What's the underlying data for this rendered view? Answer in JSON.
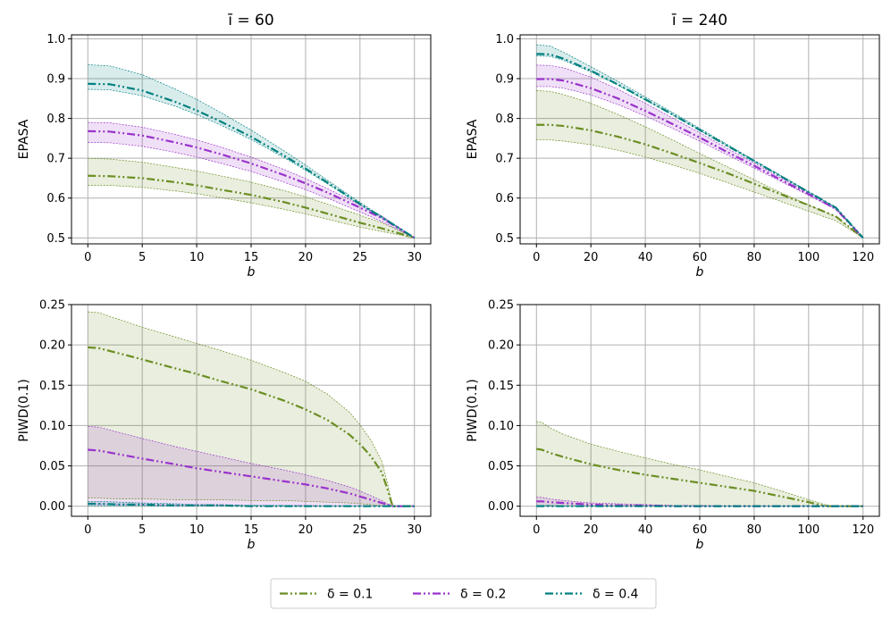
{
  "colors": {
    "d01": "#6b8e23",
    "d02": "#9932cc",
    "d04": "#008080"
  },
  "legend": [
    {
      "label": "δ = 0.1",
      "color": "#6b8e23"
    },
    {
      "label": "δ = 0.2",
      "color": "#9932cc"
    },
    {
      "label": "δ = 0.4",
      "color": "#008080"
    }
  ],
  "chart_data": [
    {
      "type": "line",
      "title": "ī = 60",
      "xlabel": "b",
      "ylabel": "EPASA",
      "xlim": [
        -1.5,
        31.5
      ],
      "ylim": [
        0.485,
        1.01
      ],
      "xticks": [
        0,
        5,
        10,
        15,
        20,
        25,
        30
      ],
      "yticks": [
        0.5,
        0.6,
        0.7,
        0.8,
        0.9,
        1.0
      ],
      "ytick_labels": [
        "0.5",
        "0.6",
        "0.7",
        "0.8",
        "0.9",
        "1.0"
      ],
      "x": [
        0,
        2,
        5,
        8,
        10,
        12,
        15,
        18,
        20,
        22,
        25,
        27,
        30
      ],
      "series": [
        {
          "name": "δ = 0.1",
          "color": "#6b8e23",
          "mean": [
            0.656,
            0.655,
            0.65,
            0.64,
            0.632,
            0.622,
            0.608,
            0.59,
            0.576,
            0.561,
            0.538,
            0.524,
            0.5
          ],
          "lower": [
            0.632,
            0.632,
            0.627,
            0.618,
            0.611,
            0.602,
            0.588,
            0.572,
            0.56,
            0.547,
            0.527,
            0.516,
            0.5
          ],
          "upper": [
            0.7,
            0.698,
            0.69,
            0.677,
            0.668,
            0.657,
            0.64,
            0.619,
            0.603,
            0.585,
            0.557,
            0.538,
            0.5
          ]
        },
        {
          "name": "δ = 0.2",
          "color": "#9932cc",
          "mean": [
            0.768,
            0.767,
            0.757,
            0.74,
            0.727,
            0.712,
            0.687,
            0.658,
            0.637,
            0.614,
            0.576,
            0.55,
            0.5
          ],
          "lower": [
            0.74,
            0.739,
            0.73,
            0.715,
            0.703,
            0.689,
            0.667,
            0.64,
            0.621,
            0.6,
            0.565,
            0.541,
            0.5
          ],
          "upper": [
            0.79,
            0.789,
            0.778,
            0.76,
            0.746,
            0.73,
            0.703,
            0.672,
            0.649,
            0.624,
            0.583,
            0.555,
            0.5
          ]
        },
        {
          "name": "δ = 0.4",
          "color": "#008080",
          "mean": [
            0.887,
            0.886,
            0.87,
            0.842,
            0.82,
            0.795,
            0.754,
            0.707,
            0.674,
            0.639,
            0.585,
            0.552,
            0.5
          ],
          "lower": [
            0.873,
            0.872,
            0.857,
            0.831,
            0.81,
            0.786,
            0.747,
            0.702,
            0.67,
            0.636,
            0.583,
            0.551,
            0.5
          ],
          "upper": [
            0.935,
            0.932,
            0.91,
            0.874,
            0.848,
            0.818,
            0.771,
            0.719,
            0.683,
            0.645,
            0.589,
            0.554,
            0.5
          ]
        }
      ]
    },
    {
      "type": "line",
      "title": "ī = 240",
      "xlabel": "b",
      "ylabel": "EPASA",
      "xlim": [
        -6,
        126
      ],
      "ylim": [
        0.485,
        1.01
      ],
      "xticks": [
        0,
        20,
        40,
        60,
        80,
        100,
        120
      ],
      "yticks": [
        0.5,
        0.6,
        0.7,
        0.8,
        0.9,
        1.0
      ],
      "ytick_labels": [
        "0.5",
        "0.6",
        "0.7",
        "0.8",
        "0.9",
        "1.0"
      ],
      "x": [
        0,
        5,
        10,
        20,
        30,
        40,
        50,
        60,
        70,
        80,
        90,
        100,
        110,
        120
      ],
      "series": [
        {
          "name": "δ = 0.1",
          "color": "#6b8e23",
          "mean": [
            0.784,
            0.784,
            0.781,
            0.77,
            0.754,
            0.735,
            0.712,
            0.688,
            0.663,
            0.636,
            0.609,
            0.582,
            0.554,
            0.5
          ],
          "lower": [
            0.746,
            0.746,
            0.743,
            0.734,
            0.72,
            0.703,
            0.683,
            0.662,
            0.639,
            0.615,
            0.591,
            0.567,
            0.543,
            0.5
          ],
          "upper": [
            0.87,
            0.868,
            0.86,
            0.838,
            0.81,
            0.779,
            0.746,
            0.712,
            0.679,
            0.646,
            0.613,
            0.583,
            0.552,
            0.5
          ]
        },
        {
          "name": "δ = 0.2",
          "color": "#9932cc",
          "mean": [
            0.899,
            0.899,
            0.895,
            0.876,
            0.85,
            0.819,
            0.786,
            0.752,
            0.716,
            0.681,
            0.645,
            0.61,
            0.573,
            0.5
          ],
          "lower": [
            0.88,
            0.88,
            0.876,
            0.859,
            0.835,
            0.806,
            0.775,
            0.743,
            0.709,
            0.675,
            0.641,
            0.607,
            0.571,
            0.5
          ],
          "upper": [
            0.934,
            0.933,
            0.927,
            0.904,
            0.873,
            0.838,
            0.801,
            0.764,
            0.725,
            0.688,
            0.65,
            0.612,
            0.574,
            0.5
          ]
        },
        {
          "name": "δ = 0.4",
          "color": "#008080",
          "mean": [
            0.962,
            0.961,
            0.95,
            0.92,
            0.885,
            0.848,
            0.81,
            0.771,
            0.732,
            0.693,
            0.654,
            0.615,
            0.576,
            0.5
          ],
          "lower": [
            0.957,
            0.956,
            0.946,
            0.917,
            0.883,
            0.846,
            0.809,
            0.77,
            0.731,
            0.692,
            0.654,
            0.615,
            0.576,
            0.5
          ],
          "upper": [
            0.985,
            0.982,
            0.966,
            0.93,
            0.893,
            0.854,
            0.815,
            0.775,
            0.735,
            0.695,
            0.656,
            0.616,
            0.577,
            0.5
          ]
        }
      ]
    },
    {
      "type": "line",
      "title": "",
      "xlabel": "b",
      "ylabel": "PIWD(0.1)",
      "xlim": [
        -1.5,
        31.5
      ],
      "ylim": [
        -0.0125,
        0.25
      ],
      "xticks": [
        0,
        5,
        10,
        15,
        20,
        25,
        30
      ],
      "yticks": [
        0.0,
        0.05,
        0.1,
        0.15,
        0.2,
        0.25
      ],
      "ytick_labels": [
        "0.00",
        "0.05",
        "0.10",
        "0.15",
        "0.20",
        "0.25"
      ],
      "x": [
        0,
        1,
        3,
        5,
        8,
        10,
        12,
        15,
        18,
        20,
        22,
        24,
        25,
        26,
        27,
        27.5,
        28,
        29,
        30
      ],
      "series": [
        {
          "name": "δ = 0.1",
          "color": "#6b8e23",
          "mean": [
            0.197,
            0.196,
            0.189,
            0.182,
            0.171,
            0.164,
            0.156,
            0.145,
            0.131,
            0.12,
            0.107,
            0.089,
            0.077,
            0.062,
            0.042,
            0.022,
            0.0,
            0.0,
            0.0
          ],
          "lower": [
            0.01,
            0.01,
            0.009,
            0.009,
            0.008,
            0.008,
            0.008,
            0.007,
            0.007,
            0.006,
            0.005,
            0.004,
            0.003,
            0.002,
            0.001,
            0.0,
            0.0,
            0.0,
            0.0
          ],
          "upper": [
            0.241,
            0.24,
            0.231,
            0.222,
            0.21,
            0.202,
            0.194,
            0.181,
            0.166,
            0.155,
            0.139,
            0.117,
            0.101,
            0.082,
            0.056,
            0.03,
            0.0,
            0.0,
            0.0
          ]
        },
        {
          "name": "δ = 0.2",
          "color": "#9932cc",
          "mean": [
            0.07,
            0.069,
            0.064,
            0.059,
            0.052,
            0.047,
            0.043,
            0.037,
            0.031,
            0.027,
            0.022,
            0.016,
            0.012,
            0.008,
            0.004,
            0.002,
            0.0,
            0.0,
            0.0
          ],
          "lower": [
            0.002,
            0.002,
            0.002,
            0.002,
            0.001,
            0.001,
            0.001,
            0.001,
            0.001,
            0.001,
            0.0,
            0.0,
            0.0,
            0.0,
            0.0,
            0.0,
            0.0,
            0.0,
            0.0
          ],
          "upper": [
            0.099,
            0.098,
            0.091,
            0.084,
            0.074,
            0.068,
            0.062,
            0.053,
            0.045,
            0.039,
            0.032,
            0.024,
            0.019,
            0.013,
            0.007,
            0.003,
            0.0,
            0.0,
            0.0
          ]
        },
        {
          "name": "δ = 0.4",
          "color": "#008080",
          "mean": [
            0.003,
            0.003,
            0.002,
            0.002,
            0.001,
            0.001,
            0.001,
            0.0,
            0.0,
            0.0,
            0.0,
            0.0,
            0.0,
            0.0,
            0.0,
            0.0,
            0.0,
            0.0,
            0.0
          ],
          "lower": [
            0.0,
            0.0,
            0.0,
            0.0,
            0.0,
            0.0,
            0.0,
            0.0,
            0.0,
            0.0,
            0.0,
            0.0,
            0.0,
            0.0,
            0.0,
            0.0,
            0.0,
            0.0,
            0.0
          ],
          "upper": [
            0.006,
            0.006,
            0.005,
            0.004,
            0.003,
            0.002,
            0.002,
            0.001,
            0.001,
            0.0,
            0.0,
            0.0,
            0.0,
            0.0,
            0.0,
            0.0,
            0.0,
            0.0,
            0.0
          ]
        }
      ]
    },
    {
      "type": "line",
      "title": "",
      "xlabel": "b",
      "ylabel": "PIWD(0.1)",
      "xlim": [
        -6,
        126
      ],
      "ylim": [
        -0.0125,
        0.25
      ],
      "xticks": [
        0,
        20,
        40,
        60,
        80,
        100,
        120
      ],
      "yticks": [
        0.0,
        0.05,
        0.1,
        0.15,
        0.2,
        0.25
      ],
      "ytick_labels": [
        "0.00",
        "0.05",
        "0.10",
        "0.15",
        "0.20",
        "0.25"
      ],
      "x": [
        0,
        2,
        5,
        10,
        20,
        30,
        40,
        50,
        60,
        70,
        80,
        90,
        100,
        105,
        108,
        110,
        120
      ],
      "series": [
        {
          "name": "δ = 0.1",
          "color": "#6b8e23",
          "mean": [
            0.071,
            0.07,
            0.066,
            0.061,
            0.052,
            0.045,
            0.039,
            0.034,
            0.029,
            0.024,
            0.019,
            0.012,
            0.005,
            0.001,
            0.0,
            0.0,
            0.0
          ],
          "lower": [
            0.0,
            0.0,
            0.0,
            0.0,
            0.0,
            0.0,
            0.0,
            0.0,
            0.0,
            0.0,
            0.0,
            0.0,
            0.0,
            0.0,
            0.0,
            0.0,
            0.0
          ],
          "upper": [
            0.105,
            0.104,
            0.097,
            0.089,
            0.077,
            0.068,
            0.06,
            0.052,
            0.045,
            0.037,
            0.029,
            0.019,
            0.008,
            0.003,
            0.0,
            0.0,
            0.0
          ]
        },
        {
          "name": "δ = 0.2",
          "color": "#9932cc",
          "mean": [
            0.006,
            0.006,
            0.005,
            0.004,
            0.002,
            0.001,
            0.001,
            0.0,
            0.0,
            0.0,
            0.0,
            0.0,
            0.0,
            0.0,
            0.0,
            0.0,
            0.0
          ],
          "lower": [
            0.0,
            0.0,
            0.0,
            0.0,
            0.0,
            0.0,
            0.0,
            0.0,
            0.0,
            0.0,
            0.0,
            0.0,
            0.0,
            0.0,
            0.0,
            0.0,
            0.0
          ],
          "upper": [
            0.011,
            0.011,
            0.009,
            0.007,
            0.004,
            0.003,
            0.002,
            0.001,
            0.001,
            0.0,
            0.0,
            0.0,
            0.0,
            0.0,
            0.0,
            0.0,
            0.0
          ]
        },
        {
          "name": "δ = 0.4",
          "color": "#008080",
          "mean": [
            0.0,
            0.0,
            0.0,
            0.0,
            0.0,
            0.0,
            0.0,
            0.0,
            0.0,
            0.0,
            0.0,
            0.0,
            0.0,
            0.0,
            0.0,
            0.0,
            0.0
          ],
          "lower": [
            0.0,
            0.0,
            0.0,
            0.0,
            0.0,
            0.0,
            0.0,
            0.0,
            0.0,
            0.0,
            0.0,
            0.0,
            0.0,
            0.0,
            0.0,
            0.0,
            0.0
          ],
          "upper": [
            0.001,
            0.001,
            0.001,
            0.0,
            0.0,
            0.0,
            0.0,
            0.0,
            0.0,
            0.0,
            0.0,
            0.0,
            0.0,
            0.0,
            0.0,
            0.0,
            0.0
          ]
        }
      ]
    }
  ]
}
